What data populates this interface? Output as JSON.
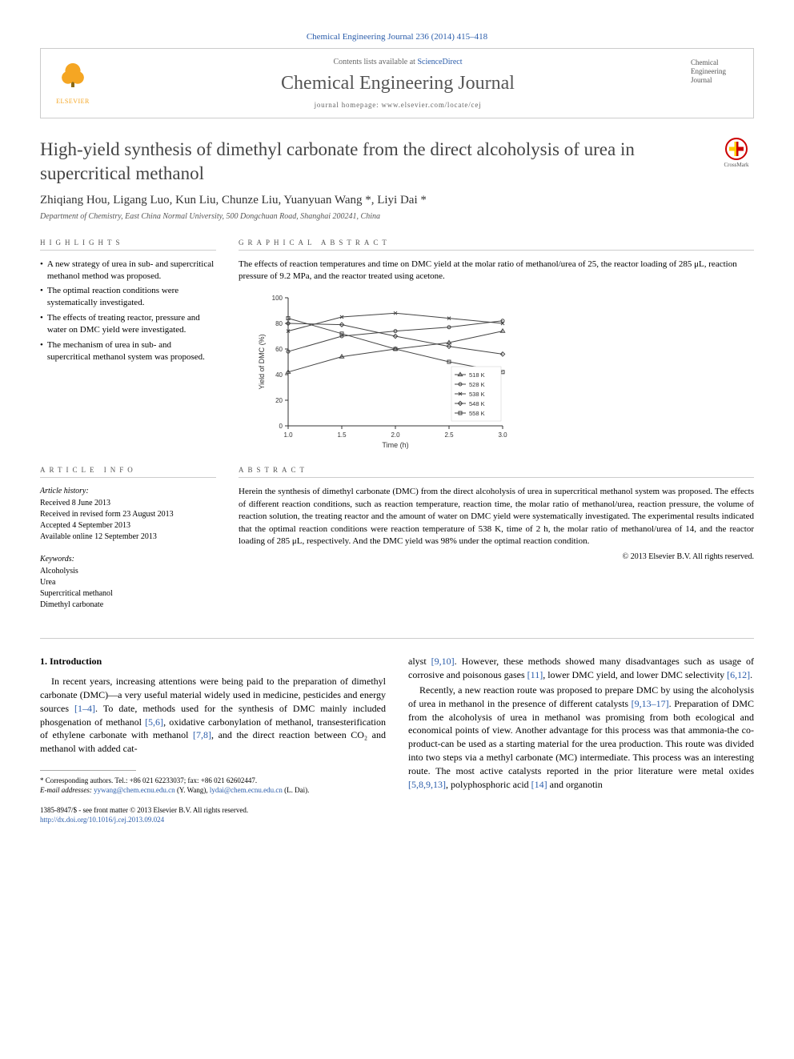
{
  "citation": "Chemical Engineering Journal 236 (2014) 415–418",
  "header": {
    "publisher": "ELSEVIER",
    "contents_prefix": "Contents lists available at ",
    "contents_link": "ScienceDirect",
    "journal": "Chemical Engineering Journal",
    "homepage": "journal homepage: www.elsevier.com/locate/cej",
    "cover_text": "Chemical\nEngineering\nJournal"
  },
  "crossmark": "CrossMark",
  "title": "High-yield synthesis of dimethyl carbonate from the direct alcoholysis of urea in supercritical methanol",
  "authors": "Zhiqiang Hou, Ligang Luo, Kun Liu, Chunze Liu, Yuanyuan Wang *, Liyi Dai *",
  "affiliation": "Department of Chemistry, East China Normal University, 500 Dongchuan Road, Shanghai 200241, China",
  "highlights": {
    "label": "HIGHLIGHTS",
    "items": [
      "A new strategy of urea in sub- and supercritical methanol method was proposed.",
      "The optimal reaction conditions were systematically investigated.",
      "The effects of treating reactor, pressure and water on DMC yield were investigated.",
      "The mechanism of urea in sub- and supercritical methanol system was proposed."
    ]
  },
  "ga": {
    "label": "GRAPHICAL ABSTRACT",
    "caption": "The effects of reaction temperatures and time on DMC yield at the molar ratio of methanol/urea of 25, the reactor loading of 285 μL, reaction pressure of 9.2 MPa, and the reactor treated using acetone.",
    "chart": {
      "type": "line",
      "xlabel": "Time (h)",
      "ylabel": "Yield of DMC (%)",
      "xlim": [
        1.0,
        3.0
      ],
      "ylim": [
        0,
        100
      ],
      "xticks": [
        1.0,
        1.5,
        2.0,
        2.5,
        3.0
      ],
      "yticks": [
        0,
        20,
        40,
        60,
        80,
        100
      ],
      "axis_color": "#333333",
      "tick_fontsize": 8,
      "label_fontsize": 9,
      "series": [
        {
          "name": "518 K",
          "marker": "triangle",
          "color": "#444444",
          "data": [
            [
              1.0,
              42
            ],
            [
              1.5,
              54
            ],
            [
              2.0,
              60
            ],
            [
              2.5,
              65
            ],
            [
              3.0,
              74
            ]
          ]
        },
        {
          "name": "528 K",
          "marker": "circle",
          "color": "#444444",
          "data": [
            [
              1.0,
              58
            ],
            [
              1.5,
              70
            ],
            [
              2.0,
              74
            ],
            [
              2.5,
              77
            ],
            [
              3.0,
              82
            ]
          ]
        },
        {
          "name": "538 K",
          "marker": "x",
          "color": "#444444",
          "data": [
            [
              1.0,
              74
            ],
            [
              1.5,
              85
            ],
            [
              2.0,
              88
            ],
            [
              2.5,
              84
            ],
            [
              3.0,
              80
            ]
          ]
        },
        {
          "name": "548 K",
          "marker": "diamond",
          "color": "#444444",
          "data": [
            [
              1.0,
              80
            ],
            [
              1.5,
              79
            ],
            [
              2.0,
              70
            ],
            [
              2.5,
              62
            ],
            [
              3.0,
              56
            ]
          ]
        },
        {
          "name": "558 K",
          "marker": "square",
          "color": "#444444",
          "data": [
            [
              1.0,
              84
            ],
            [
              1.5,
              72
            ],
            [
              2.0,
              60
            ],
            [
              2.5,
              50
            ],
            [
              3.0,
              42
            ]
          ]
        }
      ],
      "line_width": 1,
      "marker_size": 4,
      "legend_pos": "bottom-right"
    }
  },
  "article_info": {
    "label": "ARTICLE INFO",
    "history_heading": "Article history:",
    "history": [
      "Received 8 June 2013",
      "Received in revised form 23 August 2013",
      "Accepted 4 September 2013",
      "Available online 12 September 2013"
    ],
    "keywords_heading": "Keywords:",
    "keywords": [
      "Alcoholysis",
      "Urea",
      "Supercritical methanol",
      "Dimethyl carbonate"
    ]
  },
  "abstract": {
    "label": "ABSTRACT",
    "text": "Herein the synthesis of dimethyl carbonate (DMC) from the direct alcoholysis of urea in supercritical methanol system was proposed. The effects of different reaction conditions, such as reaction temperature, reaction time, the molar ratio of methanol/urea, reaction pressure, the volume of reaction solution, the treating reactor and the amount of water on DMC yield were systematically investigated. The experimental results indicated that the optimal reaction conditions were reaction temperature of 538 K, time of 2 h, the molar ratio of methanol/urea of 14, and the reactor loading of 285 μL, respectively. And the DMC yield was 98% under the optimal reaction condition.",
    "copyright": "© 2013 Elsevier B.V. All rights reserved."
  },
  "body": {
    "heading": "1. Introduction",
    "p1_pre": "In recent years, increasing attentions were being paid to the preparation of dimethyl carbonate (DMC)—a very useful material widely used in medicine, pesticides and energy sources ",
    "r1": "[1–4]",
    "p1_a": ". To date, methods used for the synthesis of DMC mainly included phosgenation of methanol ",
    "r2": "[5,6]",
    "p1_b": ", oxidative carbonylation of methanol, transesterification of ethylene carbonate with methanol ",
    "r3": "[7,8]",
    "p1_c": ", and the direct reaction between CO₂ and methanol with added cat-",
    "p2_a": "alyst ",
    "r4": "[9,10]",
    "p2_b": ". However, these methods showed many disadvantages such as usage of corrosive and poisonous gases ",
    "r5": "[11]",
    "p2_c": ", lower DMC yield, and lower DMC selectivity ",
    "r6": "[6,12]",
    "p2_d": ".",
    "p3_a": "Recently, a new reaction route was proposed to prepare DMC by using the alcoholysis of urea in methanol in the presence of different catalysts ",
    "r7": "[9,13–17]",
    "p3_b": ". Preparation of DMC from the alcoholysis of urea in methanol was promising from both ecological and economical points of view. Another advantage for this process was that ammonia-the co-product-can be used as a starting material for the urea production. This route was divided into two steps via a methyl carbonate (MC) intermediate. This process was an interesting route. The most active catalysts reported in the prior literature were metal oxides ",
    "r8": "[5,8,9,13]",
    "p3_c": ", polyphosphoric acid ",
    "r9": "[14]",
    "p3_d": " and organotin"
  },
  "footnote": {
    "corr": "* Corresponding authors. Tel.: +86 021 62233037; fax: +86 021 62602447.",
    "email_label": "E-mail addresses: ",
    "email1": "yywang@chem.ecnu.edu.cn",
    "email1_name": " (Y. Wang), ",
    "email2": "lydai@chem.ecnu.edu.cn",
    "email2_name": " (L. Dai)."
  },
  "bottom": {
    "issn": "1385-8947/$ - see front matter © 2013 Elsevier B.V. All rights reserved.",
    "doi": "http://dx.doi.org/10.1016/j.cej.2013.09.024"
  }
}
